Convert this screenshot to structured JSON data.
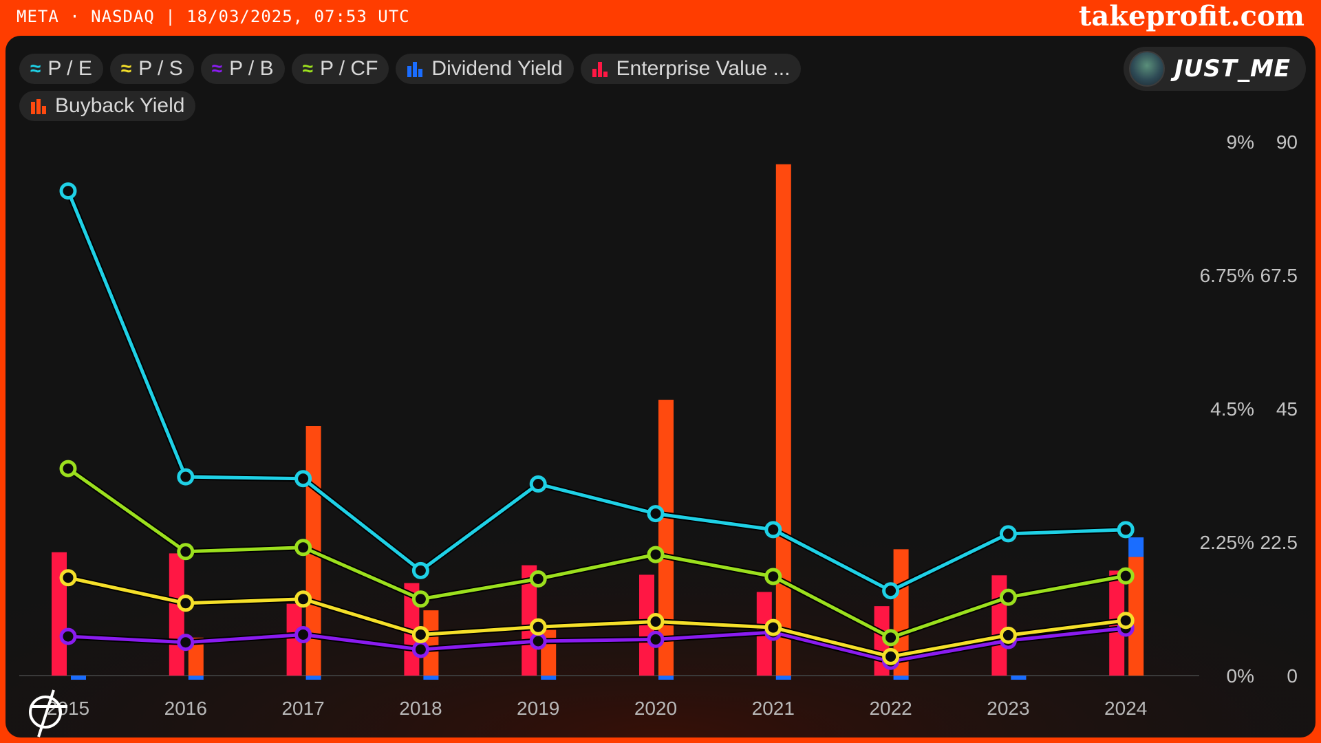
{
  "header": {
    "title": "META · NASDAQ | 18/03/2025, 07:53 UTC",
    "brand": "takeprofit.com"
  },
  "user": {
    "name": "JUST_ME"
  },
  "legend": [
    {
      "label": "P / E",
      "icon": "line-wave-icon",
      "color": "#1fd1e6"
    },
    {
      "label": "P / S",
      "icon": "line-wave-icon",
      "color": "#f5e02a"
    },
    {
      "label": "P / B",
      "icon": "line-wave-icon",
      "color": "#8a1cf0"
    },
    {
      "label": "P / CF",
      "icon": "line-wave-icon",
      "color": "#9ce01e"
    },
    {
      "label": "Dividend Yield",
      "icon": "bar-chart-icon",
      "color": "#1a6dff"
    },
    {
      "label": "Enterprise Value ...",
      "icon": "bar-chart-icon",
      "color": "#ff1744"
    },
    {
      "label": "Buyback Yield",
      "icon": "bar-chart-icon",
      "color": "#ff4a0f"
    }
  ],
  "chart_data": {
    "type": "line",
    "categories": [
      "2015",
      "2016",
      "2017",
      "2018",
      "2019",
      "2020",
      "2021",
      "2022",
      "2023",
      "2024"
    ],
    "axes": {
      "right_percent": {
        "ticks": [
          "9%",
          "6.75%",
          "4.5%",
          "2.25%",
          "0%"
        ],
        "range": [
          0,
          9
        ]
      },
      "right_ratio": {
        "ticks": [
          "90",
          "67.5",
          "45",
          "22.5",
          "0"
        ],
        "range": [
          0,
          90
        ]
      }
    },
    "grid": false,
    "series": [
      {
        "name": "P / E",
        "axis": "ratio",
        "color": "#1fd1e6",
        "values": [
          81.7,
          33.5,
          33.2,
          17.7,
          32.3,
          27.3,
          24.6,
          14.3,
          23.9,
          24.6
        ]
      },
      {
        "name": "P / S",
        "axis": "ratio",
        "color": "#f5e02a",
        "values": [
          16.5,
          12.2,
          12.9,
          6.9,
          8.2,
          9.1,
          8.1,
          3.2,
          6.8,
          9.3
        ]
      },
      {
        "name": "P / B",
        "axis": "ratio",
        "color": "#8a1cf0",
        "values": [
          6.6,
          5.6,
          6.9,
          4.4,
          5.8,
          6.1,
          7.3,
          2.4,
          5.9,
          8.0
        ]
      },
      {
        "name": "P / CF",
        "axis": "ratio",
        "color": "#9ce01e",
        "values": [
          34.9,
          20.9,
          21.6,
          12.9,
          16.3,
          20.4,
          16.7,
          6.4,
          13.2,
          16.8
        ]
      },
      {
        "name": "Dividend Yield",
        "axis": "percent",
        "color": "#1a6dff",
        "values": [
          0,
          0,
          0,
          0,
          0,
          0,
          0,
          0,
          0,
          0.33
        ]
      },
      {
        "name": "Enterprise Value ...",
        "axis": "percent",
        "color": "#ff1744",
        "values": [
          2.08,
          2.06,
          1.21,
          1.56,
          1.86,
          1.7,
          1.41,
          1.17,
          1.69,
          1.77
        ]
      },
      {
        "name": "Buyback Yield",
        "axis": "percent",
        "color": "#ff4a0f",
        "values": [
          -0.07,
          0.64,
          4.21,
          1.1,
          0.77,
          4.65,
          8.62,
          2.13,
          -0.07,
          2.0
        ]
      }
    ]
  }
}
